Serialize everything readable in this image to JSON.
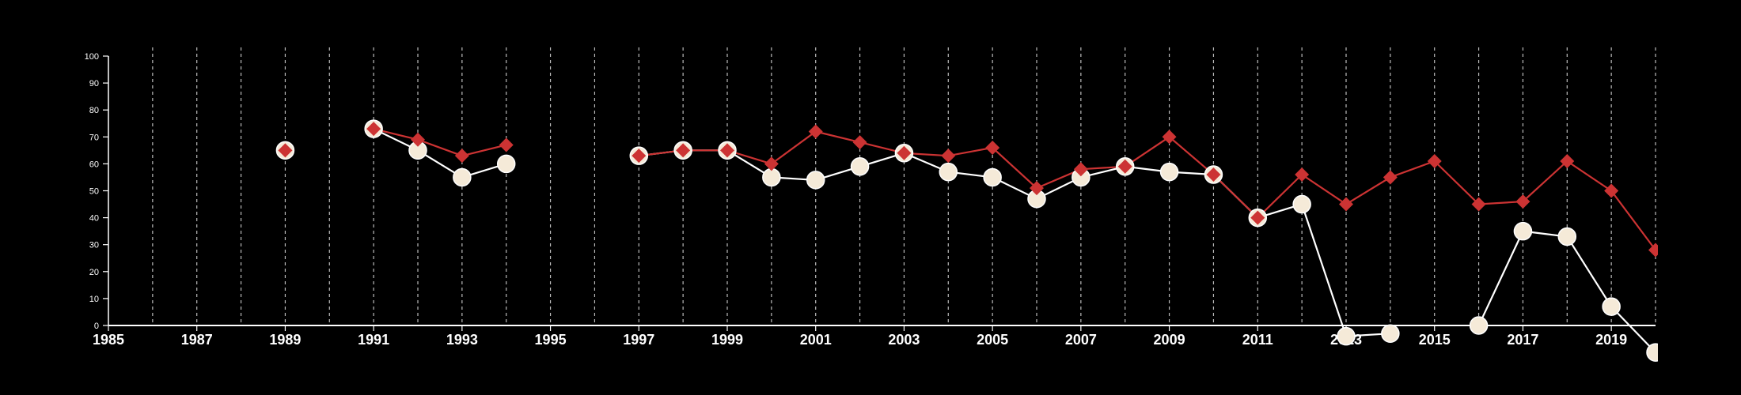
{
  "chart_data": {
    "type": "line",
    "xlim": [
      1985,
      2020
    ],
    "ylim": [
      0,
      100
    ],
    "yticks": [
      0,
      10,
      20,
      30,
      40,
      50,
      60,
      70,
      80,
      90,
      100
    ],
    "xticks": [
      1985,
      1987,
      1989,
      1991,
      1993,
      1995,
      1997,
      1999,
      2001,
      2003,
      2005,
      2007,
      2009,
      2011,
      2013,
      2015,
      2017,
      2019
    ],
    "grid": "vertical dashed lines at every year",
    "legend": "none",
    "series": [
      {
        "color": "#cc3333",
        "marker": "diamond",
        "points": [
          [
            1989,
            65
          ],
          [
            1991,
            73
          ],
          [
            1992,
            69
          ],
          [
            1993,
            63
          ],
          [
            1994,
            67
          ],
          [
            1997,
            63
          ],
          [
            1998,
            65
          ],
          [
            1999,
            65
          ],
          [
            2000,
            60
          ],
          [
            2001,
            72
          ],
          [
            2002,
            68
          ],
          [
            2003,
            64
          ],
          [
            2004,
            63
          ],
          [
            2005,
            66
          ],
          [
            2006,
            51
          ],
          [
            2007,
            58
          ],
          [
            2008,
            59
          ],
          [
            2009,
            70
          ],
          [
            2010,
            56
          ],
          [
            2011,
            40
          ],
          [
            2012,
            56
          ],
          [
            2013,
            45
          ],
          [
            2014,
            55
          ],
          [
            2015,
            61
          ],
          [
            2016,
            45
          ],
          [
            2017,
            46
          ],
          [
            2018,
            61
          ],
          [
            2019,
            50
          ],
          [
            2020,
            28
          ]
        ]
      },
      {
        "color": "#f5ead8",
        "marker": "circle",
        "points": [
          [
            1989,
            65
          ],
          [
            1991,
            73
          ],
          [
            1992,
            65
          ],
          [
            1993,
            55
          ],
          [
            1994,
            60
          ],
          [
            1997,
            63
          ],
          [
            1998,
            65
          ],
          [
            1999,
            65
          ],
          [
            2000,
            55
          ],
          [
            2001,
            54
          ],
          [
            2002,
            59
          ],
          [
            2003,
            64
          ],
          [
            2004,
            57
          ],
          [
            2005,
            55
          ],
          [
            2006,
            47
          ],
          [
            2007,
            55
          ],
          [
            2008,
            59
          ],
          [
            2009,
            57
          ],
          [
            2010,
            56
          ],
          [
            2011,
            40
          ],
          [
            2012,
            45
          ],
          [
            2013,
            -4
          ],
          [
            2014,
            -3
          ],
          [
            2016,
            0
          ],
          [
            2017,
            35
          ],
          [
            2018,
            33
          ],
          [
            2019,
            7
          ],
          [
            2020,
            -10
          ]
        ]
      }
    ]
  }
}
